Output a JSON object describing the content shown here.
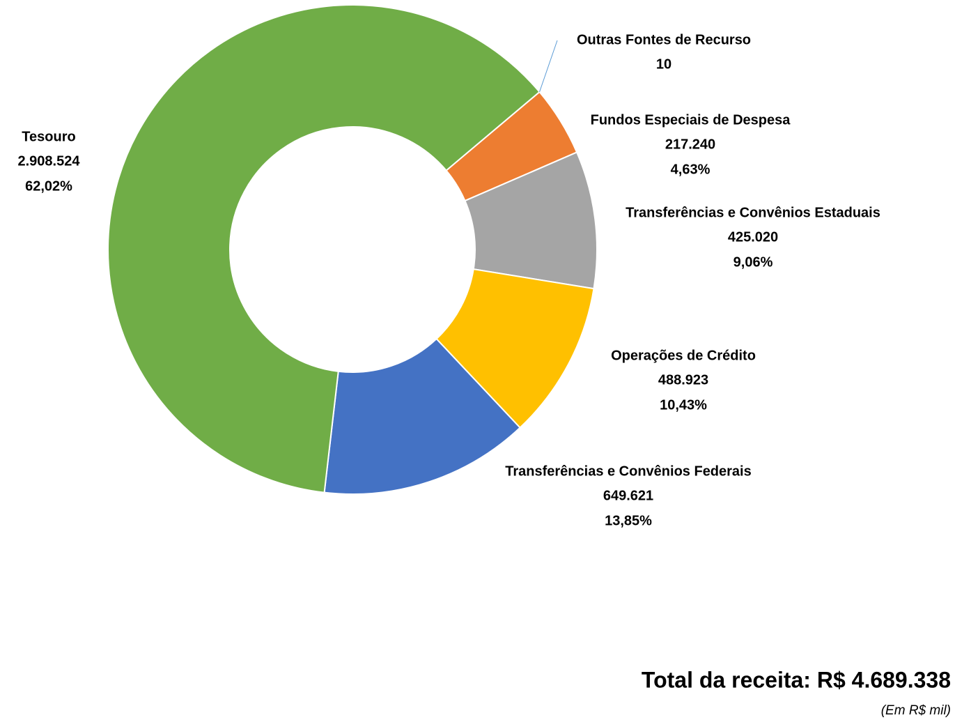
{
  "chart_data": {
    "type": "donut",
    "categories": [
      "Outras Fontes de Recurso",
      "Fundos Especiais de Despesa",
      "Transferências e Convênios Estaduais",
      "Operações de Crédito",
      "Transferências e Convênios Federais",
      "Tesouro"
    ],
    "values": [
      10,
      217240,
      425020,
      488923,
      649621,
      2908524
    ],
    "value_labels": [
      "10",
      "217.240",
      "425.020",
      "488.923",
      "649.621",
      "2.908.524"
    ],
    "percentages": [
      null,
      4.63,
      9.06,
      10.43,
      13.85,
      62.02
    ],
    "percent_labels": [
      null,
      "4,63%",
      "9,06%",
      "10,43%",
      "13,85%",
      "62,02%"
    ],
    "colors": [
      "#5b9bd5",
      "#ed7d31",
      "#a5a5a5",
      "#ffc000",
      "#4472c4",
      "#70ad47"
    ],
    "total_text": "Total da receita: R$ 4.689.338",
    "unit_note": "(Em  R$ mil)"
  }
}
